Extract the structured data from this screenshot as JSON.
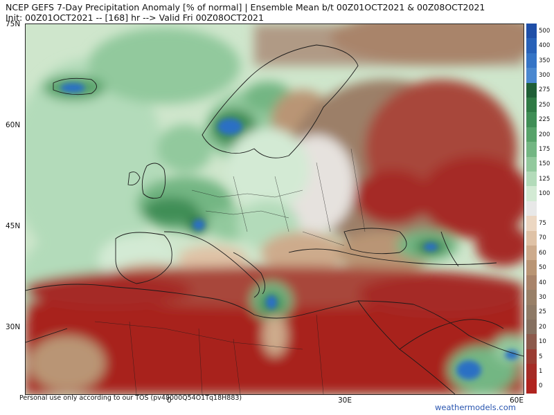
{
  "header": {
    "line1": "NCEP GEFS 7-Day Precipitation Anomaly [% of normal] | Ensemble Mean b/t 00Z01OCT2021 & 00Z08OCT2021",
    "line2": "Init: 00Z01OCT2021 -- [168] hr --> Valid Fri 00Z08OCT2021"
  },
  "axes": {
    "lat_labels": [
      "75N",
      "60N",
      "45N",
      "30N"
    ],
    "lon_labels": [
      "0",
      "30E",
      "60E"
    ]
  },
  "legend": {
    "levels": [
      {
        "label": "500",
        "color": "#1f4fa8"
      },
      {
        "label": "400",
        "color": "#2861b8"
      },
      {
        "label": "350",
        "color": "#3574c6"
      },
      {
        "label": "300",
        "color": "#4a88d0"
      },
      {
        "label": "275",
        "color": "#1f5e36"
      },
      {
        "label": "250",
        "color": "#2f7a45"
      },
      {
        "label": "225",
        "color": "#3f8e56"
      },
      {
        "label": "200",
        "color": "#57a36a"
      },
      {
        "label": "175",
        "color": "#73b683"
      },
      {
        "label": "150",
        "color": "#92c99d"
      },
      {
        "label": "125",
        "color": "#b3dbba"
      },
      {
        "label": "100",
        "color": "#d3ead4"
      },
      {
        "label": "",
        "color": "#e8e8e8"
      },
      {
        "label": "75",
        "color": "#ecd7c2"
      },
      {
        "label": "70",
        "color": "#dfc2a6"
      },
      {
        "label": "60",
        "color": "#cdab8c"
      },
      {
        "label": "50",
        "color": "#b99574"
      },
      {
        "label": "40",
        "color": "#a9846a"
      },
      {
        "label": "30",
        "color": "#988068"
      },
      {
        "label": "25",
        "color": "#8e7a66"
      },
      {
        "label": "20",
        "color": "#857060"
      },
      {
        "label": "10",
        "color": "#8c5a4c"
      },
      {
        "label": "5",
        "color": "#9a3d33"
      },
      {
        "label": "1",
        "color": "#a52c26"
      },
      {
        "label": "0",
        "color": "#b0241f"
      }
    ]
  },
  "footer": {
    "personal_use": "Personal use only according to our TOS (pv48000Q54O1Tq18H883)",
    "watermark": "weathermodels.com"
  },
  "colors": {
    "ocean_light_green": "#cfe6cc",
    "dry_red": "#a8231e",
    "dry_brown": "#9c7f68",
    "wet_green": "#3f8e56",
    "wet_blue": "#2a6fc4"
  }
}
